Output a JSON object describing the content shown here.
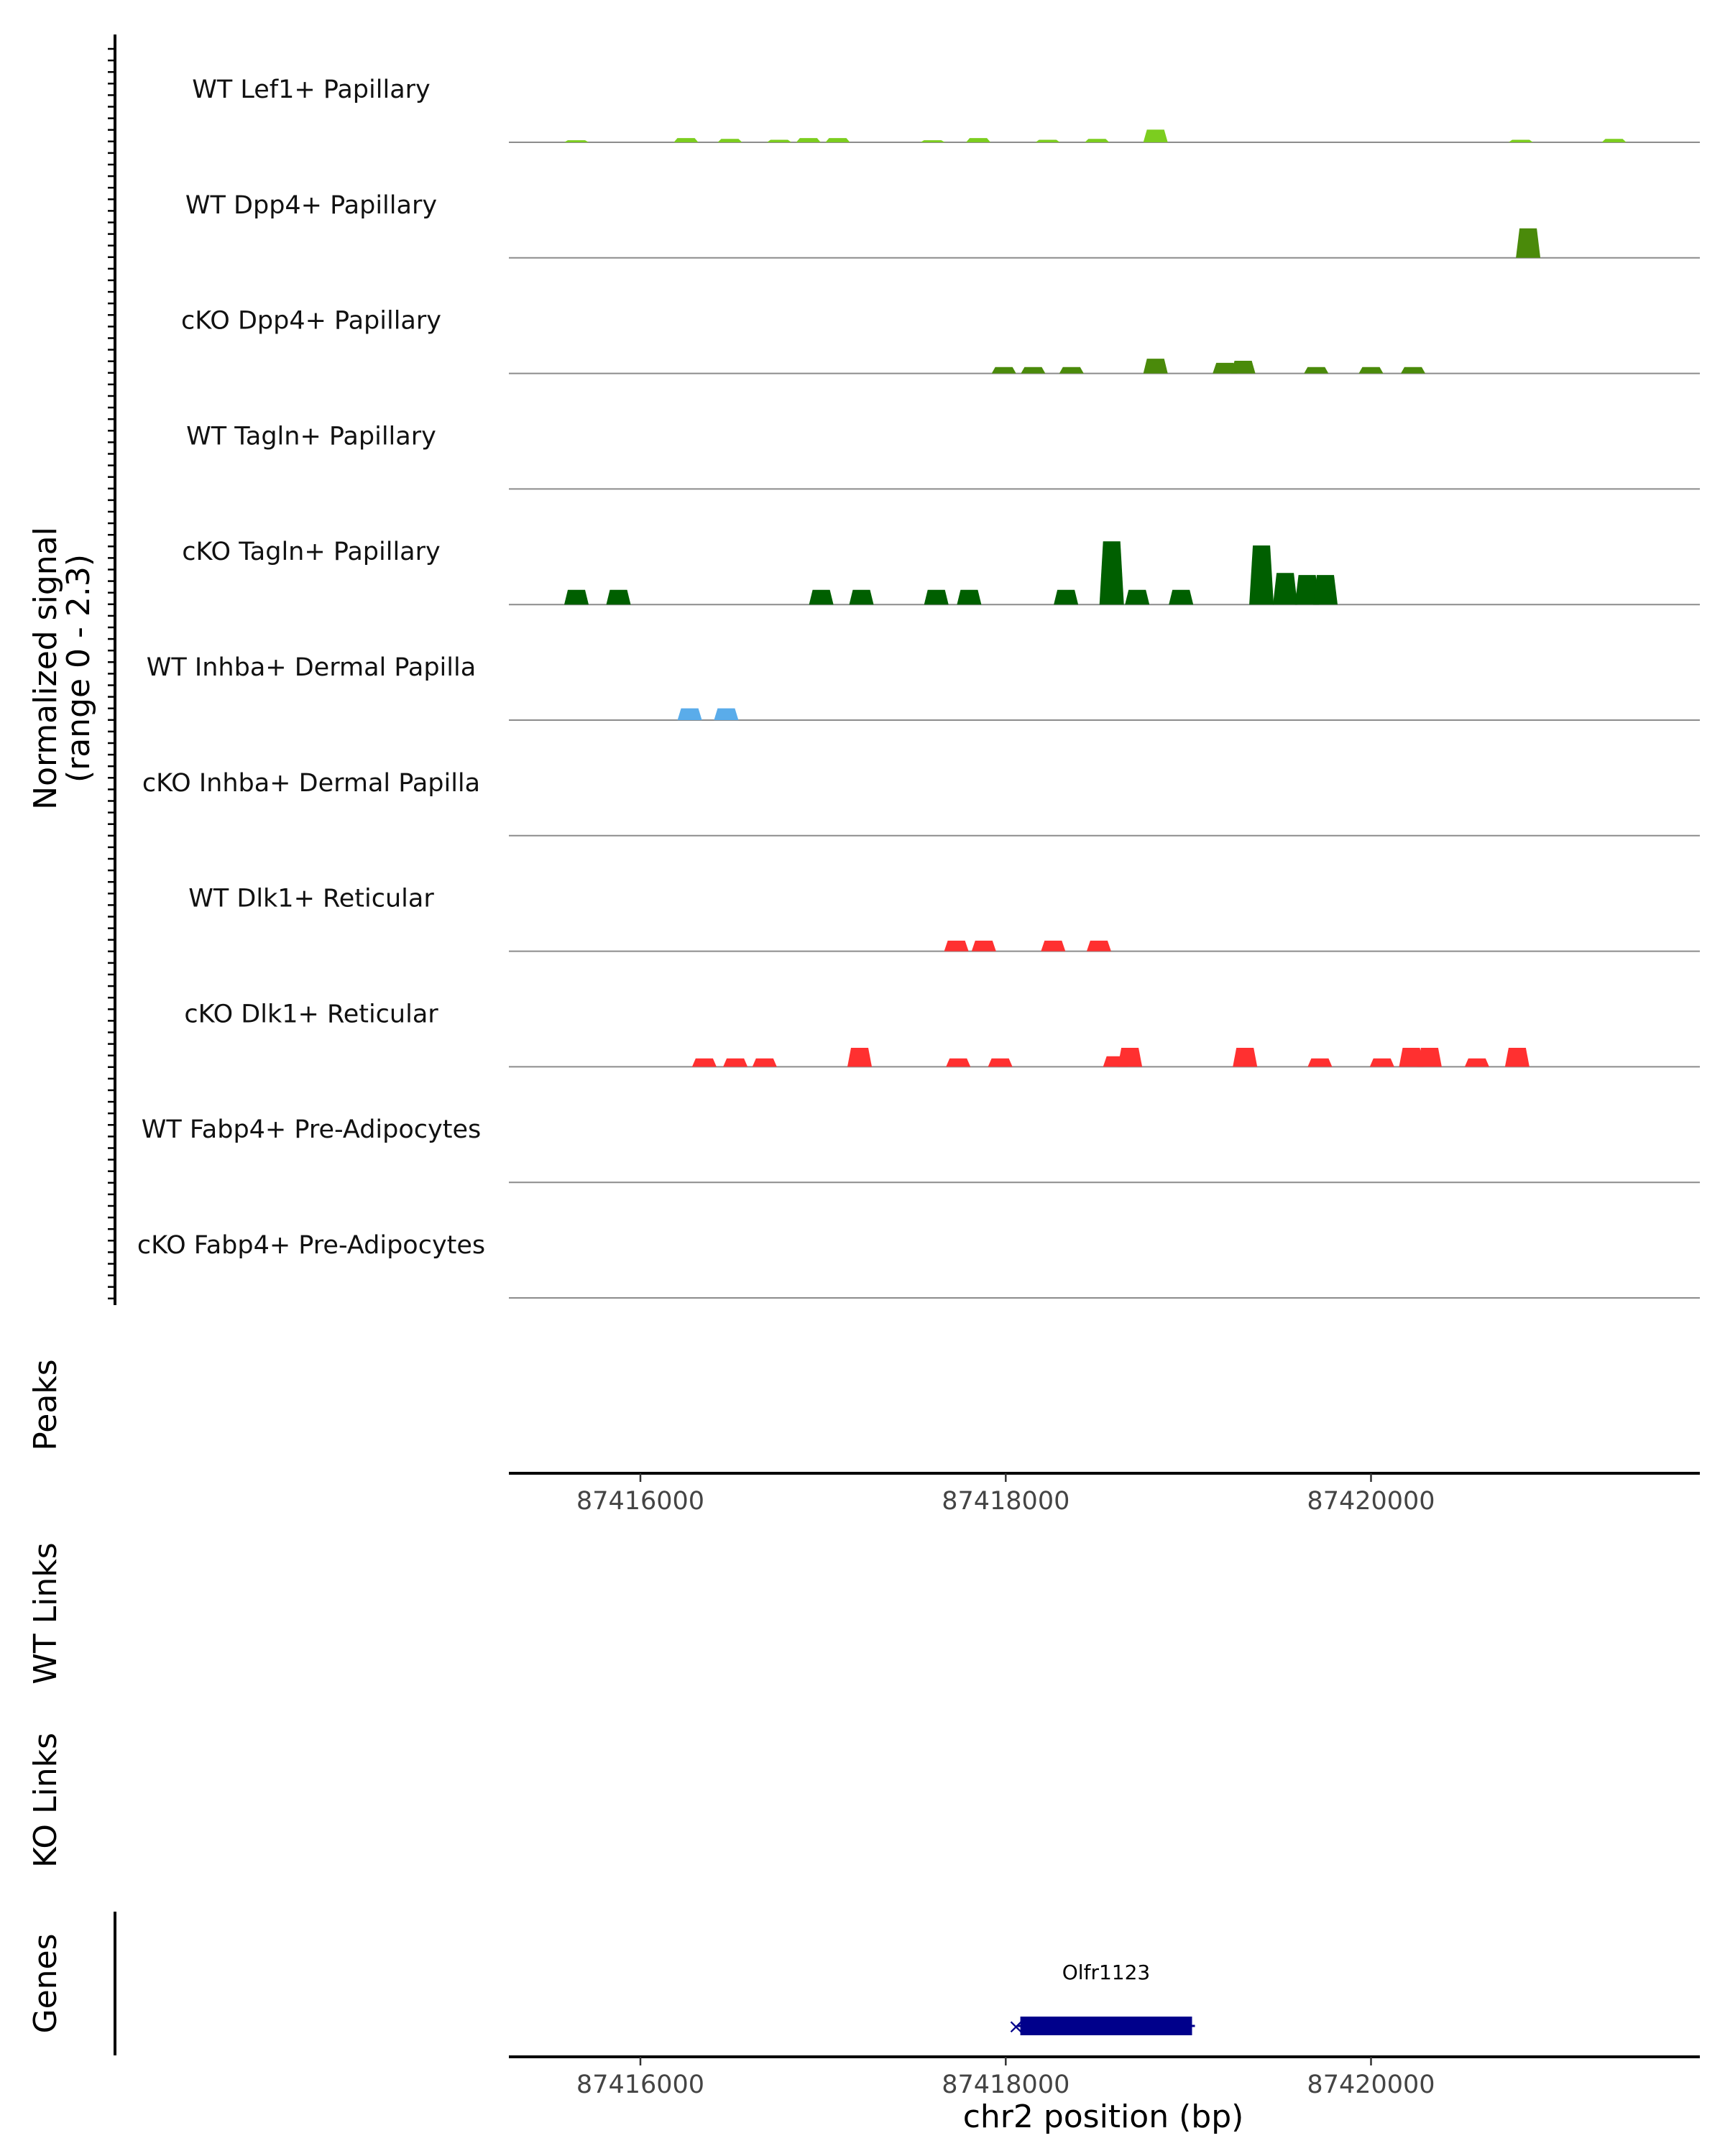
{
  "chart_data": {
    "type": "area",
    "title": "",
    "ylabel": "Normalized signal",
    "ylabel_range": "(range 0 - 2.3)",
    "ylim": [
      0,
      2.3
    ],
    "xlabel": "chr2 position (bp)",
    "xlim": [
      87415280,
      87421800
    ],
    "xticks": [
      87416000,
      87418000,
      87420000
    ],
    "xtick_labels": [
      "87416000",
      "87418000",
      "87420000"
    ],
    "tracks": [
      {
        "name": "WT Lef1+ Papillary",
        "color": "#7ccd1f",
        "peaks": [
          [
            87415650,
            0.05
          ],
          [
            87416250,
            0.1
          ],
          [
            87416490,
            0.08
          ],
          [
            87416760,
            0.06
          ],
          [
            87416920,
            0.1
          ],
          [
            87417080,
            0.1
          ],
          [
            87417600,
            0.05
          ],
          [
            87417850,
            0.1
          ],
          [
            87418230,
            0.06
          ],
          [
            87418500,
            0.08
          ],
          [
            87418820,
            0.3
          ],
          [
            87420820,
            0.06
          ],
          [
            87421330,
            0.08
          ]
        ]
      },
      {
        "name": "WT Dpp4+ Papillary",
        "color": "#4a8a0a",
        "peaks": [
          [
            87420860,
            0.7
          ]
        ]
      },
      {
        "name": "cKO Dpp4+ Papillary",
        "color": "#4a8a0a",
        "peaks": [
          [
            87417990,
            0.15
          ],
          [
            87418150,
            0.15
          ],
          [
            87418360,
            0.15
          ],
          [
            87418820,
            0.35
          ],
          [
            87419200,
            0.25
          ],
          [
            87419300,
            0.3
          ],
          [
            87419700,
            0.15
          ],
          [
            87420000,
            0.15
          ],
          [
            87420230,
            0.15
          ]
        ]
      },
      {
        "name": "WT Tagln+ Papillary",
        "color": "#005f00",
        "peaks": []
      },
      {
        "name": "cKO Tagln+ Papillary",
        "color": "#005f00",
        "peaks": [
          [
            87415650,
            0.35
          ],
          [
            87415880,
            0.35
          ],
          [
            87416990,
            0.35
          ],
          [
            87417210,
            0.35
          ],
          [
            87417620,
            0.35
          ],
          [
            87417800,
            0.35
          ],
          [
            87418330,
            0.35
          ],
          [
            87418580,
            1.5
          ],
          [
            87418720,
            0.35
          ],
          [
            87418960,
            0.35
          ],
          [
            87419400,
            1.4
          ],
          [
            87419530,
            0.75
          ],
          [
            87419650,
            0.7
          ],
          [
            87419750,
            0.7
          ]
        ]
      },
      {
        "name": "WT Inhba+ Dermal Papilla",
        "color": "#5aacea",
        "peaks": [
          [
            87416270,
            0.28
          ],
          [
            87416470,
            0.28
          ]
        ]
      },
      {
        "name": "cKO Inhba+ Dermal Papilla",
        "color": "#ff3030",
        "peaks": []
      },
      {
        "name": "WT Dlk1+ Reticular",
        "color": "#ff3030",
        "peaks": [
          [
            87417730,
            0.25
          ],
          [
            87417880,
            0.25
          ],
          [
            87418260,
            0.25
          ],
          [
            87418510,
            0.25
          ]
        ]
      },
      {
        "name": "cKO Dlk1+ Reticular",
        "color": "#ff3030",
        "peaks": [
          [
            87416350,
            0.2
          ],
          [
            87416520,
            0.2
          ],
          [
            87416680,
            0.2
          ],
          [
            87417200,
            0.45
          ],
          [
            87417740,
            0.2
          ],
          [
            87417970,
            0.2
          ],
          [
            87418600,
            0.25
          ],
          [
            87418680,
            0.45
          ],
          [
            87419310,
            0.45
          ],
          [
            87419720,
            0.2
          ],
          [
            87420060,
            0.2
          ],
          [
            87420220,
            0.45
          ],
          [
            87420320,
            0.45
          ],
          [
            87420580,
            0.2
          ],
          [
            87420800,
            0.45
          ]
        ]
      },
      {
        "name": "WT Fabp4+ Pre-Adipocytes",
        "color": "#ff3030",
        "peaks": []
      },
      {
        "name": "cKO Fabp4+ Pre-Adipocytes",
        "color": "#ff3030",
        "peaks": []
      }
    ],
    "peaks_label": "Peaks",
    "wt_links_label": "WT Links",
    "ko_links_label": "KO Links",
    "genes_label": "Genes",
    "gene": {
      "name": "Olfr1123",
      "start": 87418080,
      "end": 87419020,
      "color": "#00008b"
    }
  }
}
